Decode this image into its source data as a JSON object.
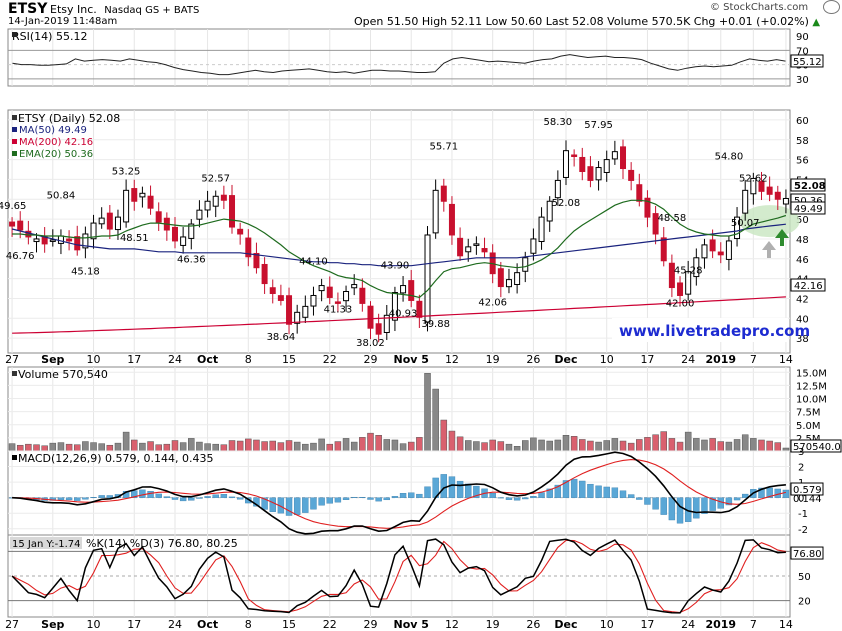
{
  "header": {
    "symbol": "ETSY",
    "company": "Etsy Inc.",
    "exchange": "Nasdaq GS + BATS",
    "date": "14-Jan-2019 11:48am",
    "quote": "Open 51.50  High 52.11  Low 50.60  Last 52.08  Volume 570.5K  Chg +0.01 (+0.02%)",
    "quote_arrow": "▲",
    "copyright": "© StockCharts.com"
  },
  "rsi": {
    "label": "RSI(14) 55.12",
    "ticks": [
      "90",
      "70",
      "50",
      "30"
    ],
    "last_label": "55.12",
    "values": [
      52,
      50,
      50,
      49,
      49,
      50,
      51,
      58,
      55,
      56,
      57,
      56,
      55,
      58,
      56,
      54,
      53,
      50,
      46,
      43,
      41,
      39,
      38,
      36,
      36,
      38,
      40,
      42,
      40,
      39,
      41,
      42,
      43,
      44,
      42,
      40,
      39,
      40,
      38,
      40,
      42,
      42,
      41,
      41,
      40,
      39,
      39,
      40,
      52,
      58,
      60,
      58,
      56,
      54,
      55,
      54,
      53,
      52,
      55,
      57,
      58,
      62,
      64,
      62,
      60,
      61,
      62,
      60,
      60,
      59,
      57,
      52,
      48,
      44,
      42,
      45,
      47,
      48,
      47,
      48,
      49,
      54,
      58,
      56,
      55,
      57,
      55
    ]
  },
  "price": {
    "legend_title": "ETSY (Daily) 52.08",
    "legend": [
      {
        "label": "MA(50) 49.49",
        "color": "#1a237e"
      },
      {
        "label": "MA(200) 42.16",
        "color": "#cc0033"
      },
      {
        "label": "EMA(20) 50.36",
        "color": "#1e6b1e"
      }
    ],
    "y_ticks": [
      "60",
      "58",
      "56",
      "54",
      "52",
      "50",
      "48",
      "46",
      "44",
      "42",
      "40",
      "38"
    ],
    "last_labels": [
      "52.08",
      "50.36",
      "49.49",
      "42.16"
    ],
    "annotations": [
      "49.65",
      "50.84",
      "46.76",
      "45.18",
      "53.25",
      "48.51",
      "46.36",
      "52.57",
      "38.64",
      "44.10",
      "41.33",
      "43.90",
      "38.02",
      "40.93",
      "39.88",
      "55.71",
      "42.06",
      "58.30",
      "57.95",
      "52.08",
      "48.58",
      "45.28",
      "42.00",
      "54.80",
      "52.62",
      "50.07"
    ],
    "watermark": "www.livetradepro.com",
    "arrow_up_color": "#2e8b2e",
    "arrow_gray_color": "#b0b0b0",
    "highlight_color": "#c8e6c0"
  },
  "volume": {
    "label": "Volume 570,540",
    "ticks": [
      "15.0M",
      "12.5M",
      "10.0M",
      "7.5M",
      "5.0M",
      "2.5M"
    ],
    "last_label": "570540.0"
  },
  "macd": {
    "label": "MACD(12,26,9) 0.579, 0.144, 0.435",
    "ticks": [
      "3",
      "2",
      "1",
      "0",
      "-1",
      "-2"
    ],
    "last_labels": [
      "0.579",
      "0.144"
    ]
  },
  "stoch": {
    "tag": "15 Jan Y:-1.74",
    "label": "%K(14) %D(3) 76.80, 80.25",
    "ticks": [
      "80",
      "50",
      "20"
    ],
    "last_label": "76.80"
  },
  "x_axis": {
    "labels": [
      "27",
      "Sep",
      "10",
      "17",
      "24",
      "Oct",
      "8",
      "15",
      "22",
      "29",
      "Nov 5",
      "12",
      "19",
      "26",
      "Dec",
      "10",
      "17",
      "24",
      "2019",
      "7",
      "14"
    ]
  },
  "chart_data": {
    "type": "candlestick",
    "title": "ETSY Etsy Inc. Nasdaq GS + BATS",
    "x": [
      "Aug 27",
      "Aug 28",
      "Aug 29",
      "Aug 30",
      "Aug 31",
      "Sep 4",
      "Sep 5",
      "Sep 6",
      "Sep 7",
      "Sep 10",
      "Sep 11",
      "Sep 12",
      "Sep 13",
      "Sep 14",
      "Sep 17",
      "Sep 18",
      "Sep 19",
      "Sep 20",
      "Sep 21",
      "Sep 24",
      "Sep 25",
      "Sep 26",
      "Sep 27",
      "Sep 28",
      "Oct 1",
      "Oct 2",
      "Oct 3",
      "Oct 4",
      "Oct 5",
      "Oct 8",
      "Oct 9",
      "Oct 10",
      "Oct 11",
      "Oct 12",
      "Oct 15",
      "Oct 16",
      "Oct 17",
      "Oct 18",
      "Oct 19",
      "Oct 22",
      "Oct 23",
      "Oct 24",
      "Oct 25",
      "Oct 26",
      "Oct 29",
      "Oct 30",
      "Oct 31",
      "Nov 1",
      "Nov 2",
      "Nov 5",
      "Nov 6",
      "Nov 7",
      "Nov 8",
      "Nov 9",
      "Nov 12",
      "Nov 13",
      "Nov 14",
      "Nov 15",
      "Nov 16",
      "Nov 19",
      "Nov 20",
      "Nov 21",
      "Nov 23",
      "Nov 26",
      "Nov 27",
      "Nov 28",
      "Nov 29",
      "Nov 30",
      "Dec 3",
      "Dec 4",
      "Dec 6",
      "Dec 7",
      "Dec 10",
      "Dec 11",
      "Dec 12",
      "Dec 13",
      "Dec 14",
      "Dec 17",
      "Dec 18",
      "Dec 19",
      "Dec 20",
      "Dec 21",
      "Dec 24",
      "Dec 26",
      "Dec 27",
      "Dec 28",
      "Dec 31",
      "Jan 2",
      "Jan 3",
      "Jan 4",
      "Jan 7",
      "Jan 8",
      "Jan 9",
      "Jan 10",
      "Jan 11",
      "Jan 14"
    ],
    "close": [
      49.3,
      48.9,
      48.2,
      48.0,
      47.5,
      47.9,
      48.3,
      47.8,
      46.9,
      48.5,
      49.6,
      50.1,
      49.0,
      50.2,
      52.9,
      51.8,
      52.6,
      51.1,
      49.7,
      48.9,
      47.8,
      48.2,
      49.5,
      50.9,
      51.8,
      52.3,
      51.9,
      49.2,
      48.5,
      46.2,
      45.1,
      43.5,
      42.5,
      41.8,
      39.4,
      40.6,
      41.2,
      42.3,
      43.3,
      42.1,
      41.5,
      42.7,
      43.4,
      41.5,
      39.0,
      38.4,
      40.3,
      42.6,
      43.3,
      41.8,
      40.1,
      48.4,
      52.9,
      51.8,
      48.4,
      46.3,
      47.2,
      47.5,
      46.7,
      44.5,
      43.2,
      43.9,
      44.6,
      46.1,
      48.0,
      50.2,
      51.8,
      53.9,
      56.9,
      56.4,
      54.8,
      53.9,
      55.2,
      56.0,
      56.8,
      55.1,
      53.9,
      51.8,
      50.2,
      48.5,
      45.8,
      43.1,
      42.3,
      44.7,
      46.1,
      47.4,
      46.8,
      46.4,
      47.8,
      50.2,
      52.9,
      54.1,
      52.8,
      52.5,
      52.0,
      52.08
    ],
    "volume_millions": [
      1.4,
      1.1,
      1.3,
      1.2,
      1.0,
      1.5,
      1.6,
      1.3,
      1.2,
      1.8,
      1.6,
      1.4,
      1.1,
      1.5,
      3.6,
      2.1,
      1.5,
      1.8,
      1.2,
      1.3,
      2.0,
      1.6,
      2.4,
      1.7,
      1.4,
      1.3,
      1.2,
      2.0,
      1.9,
      2.3,
      2.1,
      1.8,
      1.9,
      1.6,
      2.0,
      1.7,
      1.3,
      1.5,
      2.3,
      1.3,
      1.8,
      2.4,
      1.7,
      2.6,
      3.4,
      3.0,
      2.2,
      2.1,
      1.4,
      1.7,
      2.6,
      14.8,
      11.8,
      5.9,
      3.8,
      2.7,
      2.0,
      1.8,
      1.6,
      2.1,
      1.8,
      1.3,
      0.9,
      2.0,
      2.5,
      2.1,
      1.9,
      2.1,
      3.0,
      2.8,
      2.2,
      1.9,
      1.7,
      2.0,
      2.4,
      1.9,
      1.5,
      2.2,
      2.6,
      3.1,
      3.7,
      2.4,
      1.7,
      3.6,
      2.4,
      2.1,
      2.4,
      1.8,
      1.7,
      2.2,
      3.1,
      2.4,
      2.1,
      1.9,
      1.6,
      0.57
    ],
    "ma50": [
      49.0,
      48.8,
      48.6,
      48.4,
      48.2,
      48.0,
      47.8,
      47.6,
      47.4,
      47.3,
      47.2,
      47.1,
      47.0,
      47.0,
      47.0,
      47.0,
      46.9,
      46.8,
      46.7,
      46.7,
      46.7,
      46.6,
      46.6,
      46.6,
      46.6,
      46.6,
      46.6,
      46.6,
      46.6,
      46.5,
      46.4,
      46.3,
      46.2,
      46.1,
      46.0,
      45.9,
      45.8,
      45.7,
      45.7,
      45.6,
      45.6,
      45.5,
      45.5,
      45.4,
      45.4,
      45.3,
      45.3,
      45.3,
      45.3,
      45.3,
      45.4,
      45.5,
      45.6,
      45.7,
      45.8,
      45.9,
      46.0,
      46.1,
      46.1,
      46.1,
      46.1,
      46.1,
      46.1,
      46.2,
      46.3,
      46.4,
      46.5,
      46.6,
      46.7,
      46.8,
      46.9,
      47.0,
      47.1,
      47.2,
      47.3,
      47.4,
      47.5,
      47.6,
      47.7,
      47.8,
      47.9,
      48.0,
      48.1,
      48.2,
      48.3,
      48.4,
      48.5,
      48.6,
      48.7,
      48.8,
      49.0,
      49.1,
      49.2,
      49.3,
      49.4,
      49.49
    ],
    "ma200_start": 38.5,
    "ma200_end": 42.16,
    "ema20": [
      48.5,
      48.5,
      48.4,
      48.4,
      48.3,
      48.3,
      48.3,
      48.2,
      48.1,
      48.1,
      48.2,
      48.3,
      48.3,
      48.4,
      48.8,
      49.1,
      49.4,
      49.6,
      49.6,
      49.5,
      49.4,
      49.3,
      49.3,
      49.4,
      49.6,
      49.8,
      50.0,
      49.9,
      49.8,
      49.5,
      49.1,
      48.6,
      48.0,
      47.4,
      46.7,
      46.2,
      45.7,
      45.3,
      45.0,
      44.7,
      44.3,
      44.1,
      44.0,
      43.8,
      43.3,
      42.9,
      42.6,
      42.5,
      42.4,
      42.3,
      42.1,
      42.8,
      43.8,
      44.7,
      45.0,
      45.1,
      45.3,
      45.5,
      45.6,
      45.5,
      45.3,
      45.2,
      45.1,
      45.2,
      45.5,
      45.9,
      46.4,
      47.1,
      48.0,
      48.8,
      49.4,
      49.9,
      50.4,
      50.9,
      51.4,
      51.7,
      51.9,
      51.9,
      51.8,
      51.5,
      51.0,
      50.2,
      49.5,
      49.0,
      48.7,
      48.5,
      48.4,
      48.3,
      48.3,
      48.5,
      49.0,
      49.5,
      49.7,
      49.9,
      50.1,
      50.36
    ],
    "macd_line_start": 0.3,
    "macd_last": 0.579,
    "signal_last": 0.144,
    "histogram_last": 0.435,
    "stoch_k_last": 76.8,
    "stoch_d_last": 80.25,
    "ylim_price": [
      36.5,
      61
    ]
  }
}
